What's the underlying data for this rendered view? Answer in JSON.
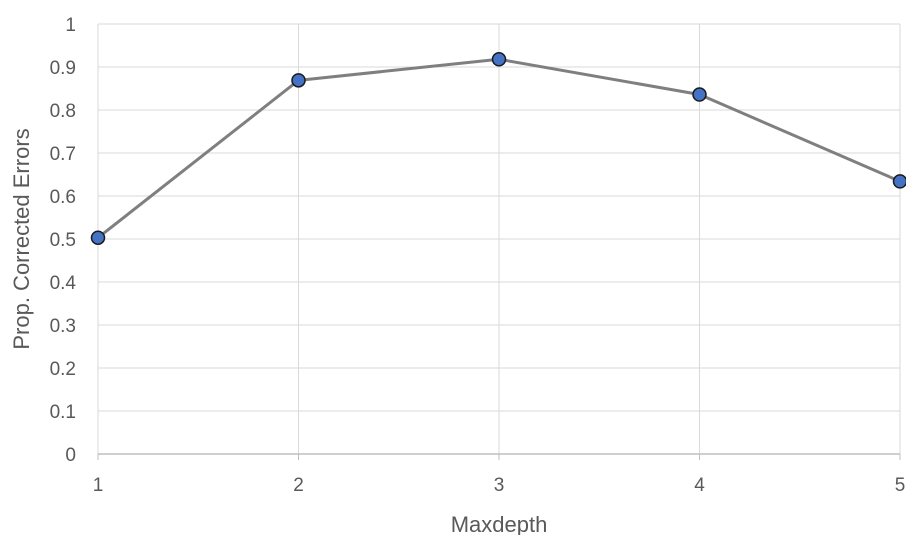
{
  "chart_data": {
    "type": "line",
    "title": "",
    "xlabel": "Maxdepth",
    "ylabel": "Prop. Corrected Errors",
    "x": [
      1,
      2,
      3,
      4,
      5
    ],
    "series": [
      {
        "values": [
          0.503,
          0.869,
          0.918,
          0.836,
          0.634
        ]
      }
    ],
    "xlim": [
      1,
      5
    ],
    "ylim": [
      0,
      1
    ],
    "xticks": [
      "1",
      "2",
      "3",
      "4",
      "5"
    ],
    "yticks": [
      "0",
      "0.1",
      "0.2",
      "0.3",
      "0.4",
      "0.5",
      "0.6",
      "0.7",
      "0.8",
      "0.9",
      "1"
    ],
    "grid": true,
    "legend": "none",
    "colors": {
      "line": "#7f7f7f",
      "marker_fill": "#4472c4",
      "marker_stroke": "#1a1a1a",
      "grid": "#d9d9d9",
      "axis": "#bfbfbf",
      "text": "#595959"
    }
  }
}
